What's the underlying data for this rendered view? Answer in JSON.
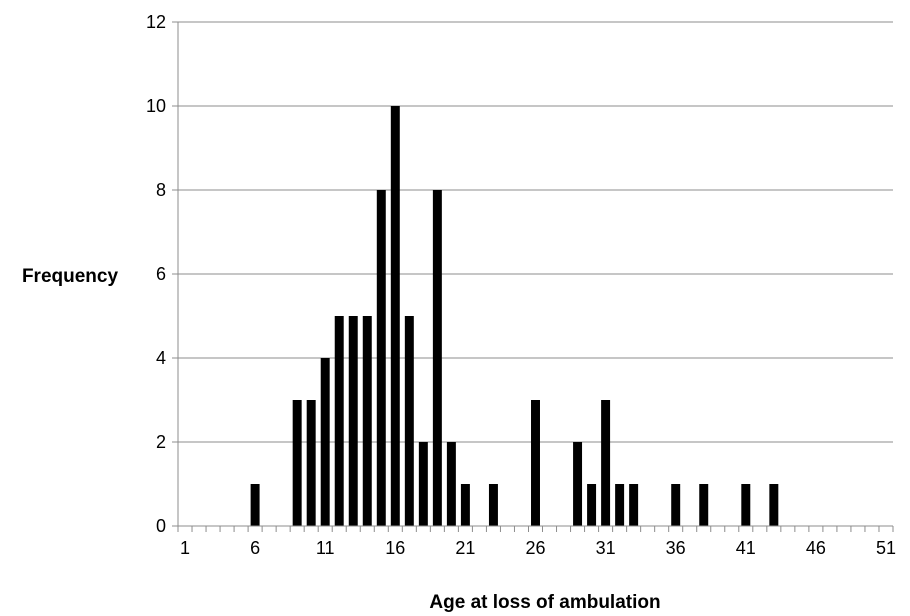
{
  "chart_data": {
    "type": "bar",
    "title": "",
    "xlabel": "Age at loss of ambulation",
    "ylabel": "Frequency",
    "xlim": [
      1,
      51
    ],
    "ylim": [
      0,
      12
    ],
    "x_ticks": [
      1,
      6,
      11,
      16,
      21,
      26,
      31,
      36,
      41,
      46,
      51
    ],
    "y_ticks": [
      0,
      2,
      4,
      6,
      8,
      10,
      12
    ],
    "grid": "horizontal",
    "legend": "none",
    "bar_color": "#000000",
    "x": [
      6,
      9,
      10,
      11,
      12,
      13,
      14,
      15,
      16,
      17,
      18,
      19,
      20,
      21,
      23,
      26,
      29,
      30,
      31,
      32,
      33,
      36,
      38,
      41,
      43
    ],
    "values": [
      1,
      3,
      3,
      4,
      5,
      5,
      5,
      8,
      10,
      5,
      2,
      8,
      2,
      1,
      1,
      3,
      2,
      1,
      3,
      1,
      1,
      1,
      1,
      1,
      1
    ]
  }
}
